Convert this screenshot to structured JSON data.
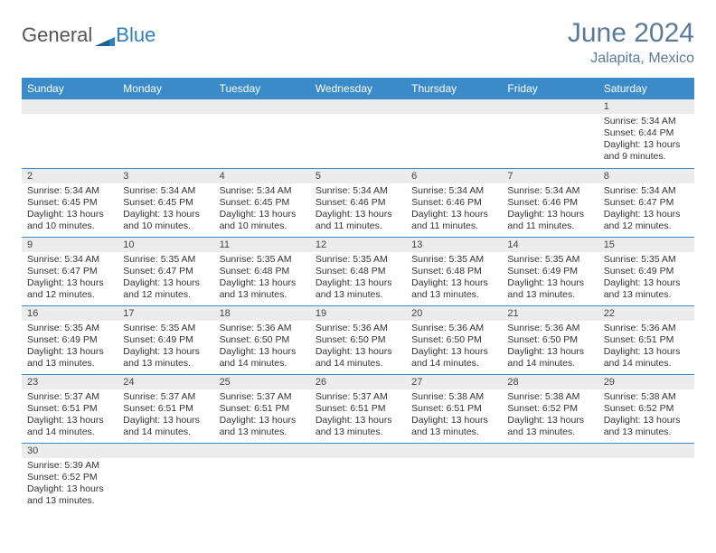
{
  "brand": {
    "part1": "General",
    "part2": "Blue"
  },
  "title": "June 2024",
  "location": "Jalapita, Mexico",
  "colors": {
    "header_bg": "#3b8bc9",
    "header_text": "#ffffff",
    "title_color": "#5a7a99",
    "daynum_bg": "#ececec",
    "border": "#3b8bc9"
  },
  "weekdays": [
    "Sunday",
    "Monday",
    "Tuesday",
    "Wednesday",
    "Thursday",
    "Friday",
    "Saturday"
  ],
  "weeks": [
    [
      {
        "n": "",
        "sr": "",
        "ss": "",
        "dl": ""
      },
      {
        "n": "",
        "sr": "",
        "ss": "",
        "dl": ""
      },
      {
        "n": "",
        "sr": "",
        "ss": "",
        "dl": ""
      },
      {
        "n": "",
        "sr": "",
        "ss": "",
        "dl": ""
      },
      {
        "n": "",
        "sr": "",
        "ss": "",
        "dl": ""
      },
      {
        "n": "",
        "sr": "",
        "ss": "",
        "dl": ""
      },
      {
        "n": "1",
        "sr": "Sunrise: 5:34 AM",
        "ss": "Sunset: 6:44 PM",
        "dl": "Daylight: 13 hours and 9 minutes."
      }
    ],
    [
      {
        "n": "2",
        "sr": "Sunrise: 5:34 AM",
        "ss": "Sunset: 6:45 PM",
        "dl": "Daylight: 13 hours and 10 minutes."
      },
      {
        "n": "3",
        "sr": "Sunrise: 5:34 AM",
        "ss": "Sunset: 6:45 PM",
        "dl": "Daylight: 13 hours and 10 minutes."
      },
      {
        "n": "4",
        "sr": "Sunrise: 5:34 AM",
        "ss": "Sunset: 6:45 PM",
        "dl": "Daylight: 13 hours and 10 minutes."
      },
      {
        "n": "5",
        "sr": "Sunrise: 5:34 AM",
        "ss": "Sunset: 6:46 PM",
        "dl": "Daylight: 13 hours and 11 minutes."
      },
      {
        "n": "6",
        "sr": "Sunrise: 5:34 AM",
        "ss": "Sunset: 6:46 PM",
        "dl": "Daylight: 13 hours and 11 minutes."
      },
      {
        "n": "7",
        "sr": "Sunrise: 5:34 AM",
        "ss": "Sunset: 6:46 PM",
        "dl": "Daylight: 13 hours and 11 minutes."
      },
      {
        "n": "8",
        "sr": "Sunrise: 5:34 AM",
        "ss": "Sunset: 6:47 PM",
        "dl": "Daylight: 13 hours and 12 minutes."
      }
    ],
    [
      {
        "n": "9",
        "sr": "Sunrise: 5:34 AM",
        "ss": "Sunset: 6:47 PM",
        "dl": "Daylight: 13 hours and 12 minutes."
      },
      {
        "n": "10",
        "sr": "Sunrise: 5:35 AM",
        "ss": "Sunset: 6:47 PM",
        "dl": "Daylight: 13 hours and 12 minutes."
      },
      {
        "n": "11",
        "sr": "Sunrise: 5:35 AM",
        "ss": "Sunset: 6:48 PM",
        "dl": "Daylight: 13 hours and 13 minutes."
      },
      {
        "n": "12",
        "sr": "Sunrise: 5:35 AM",
        "ss": "Sunset: 6:48 PM",
        "dl": "Daylight: 13 hours and 13 minutes."
      },
      {
        "n": "13",
        "sr": "Sunrise: 5:35 AM",
        "ss": "Sunset: 6:48 PM",
        "dl": "Daylight: 13 hours and 13 minutes."
      },
      {
        "n": "14",
        "sr": "Sunrise: 5:35 AM",
        "ss": "Sunset: 6:49 PM",
        "dl": "Daylight: 13 hours and 13 minutes."
      },
      {
        "n": "15",
        "sr": "Sunrise: 5:35 AM",
        "ss": "Sunset: 6:49 PM",
        "dl": "Daylight: 13 hours and 13 minutes."
      }
    ],
    [
      {
        "n": "16",
        "sr": "Sunrise: 5:35 AM",
        "ss": "Sunset: 6:49 PM",
        "dl": "Daylight: 13 hours and 13 minutes."
      },
      {
        "n": "17",
        "sr": "Sunrise: 5:35 AM",
        "ss": "Sunset: 6:49 PM",
        "dl": "Daylight: 13 hours and 13 minutes."
      },
      {
        "n": "18",
        "sr": "Sunrise: 5:36 AM",
        "ss": "Sunset: 6:50 PM",
        "dl": "Daylight: 13 hours and 14 minutes."
      },
      {
        "n": "19",
        "sr": "Sunrise: 5:36 AM",
        "ss": "Sunset: 6:50 PM",
        "dl": "Daylight: 13 hours and 14 minutes."
      },
      {
        "n": "20",
        "sr": "Sunrise: 5:36 AM",
        "ss": "Sunset: 6:50 PM",
        "dl": "Daylight: 13 hours and 14 minutes."
      },
      {
        "n": "21",
        "sr": "Sunrise: 5:36 AM",
        "ss": "Sunset: 6:50 PM",
        "dl": "Daylight: 13 hours and 14 minutes."
      },
      {
        "n": "22",
        "sr": "Sunrise: 5:36 AM",
        "ss": "Sunset: 6:51 PM",
        "dl": "Daylight: 13 hours and 14 minutes."
      }
    ],
    [
      {
        "n": "23",
        "sr": "Sunrise: 5:37 AM",
        "ss": "Sunset: 6:51 PM",
        "dl": "Daylight: 13 hours and 14 minutes."
      },
      {
        "n": "24",
        "sr": "Sunrise: 5:37 AM",
        "ss": "Sunset: 6:51 PM",
        "dl": "Daylight: 13 hours and 14 minutes."
      },
      {
        "n": "25",
        "sr": "Sunrise: 5:37 AM",
        "ss": "Sunset: 6:51 PM",
        "dl": "Daylight: 13 hours and 13 minutes."
      },
      {
        "n": "26",
        "sr": "Sunrise: 5:37 AM",
        "ss": "Sunset: 6:51 PM",
        "dl": "Daylight: 13 hours and 13 minutes."
      },
      {
        "n": "27",
        "sr": "Sunrise: 5:38 AM",
        "ss": "Sunset: 6:51 PM",
        "dl": "Daylight: 13 hours and 13 minutes."
      },
      {
        "n": "28",
        "sr": "Sunrise: 5:38 AM",
        "ss": "Sunset: 6:52 PM",
        "dl": "Daylight: 13 hours and 13 minutes."
      },
      {
        "n": "29",
        "sr": "Sunrise: 5:38 AM",
        "ss": "Sunset: 6:52 PM",
        "dl": "Daylight: 13 hours and 13 minutes."
      }
    ],
    [
      {
        "n": "30",
        "sr": "Sunrise: 5:39 AM",
        "ss": "Sunset: 6:52 PM",
        "dl": "Daylight: 13 hours and 13 minutes."
      },
      {
        "n": "",
        "sr": "",
        "ss": "",
        "dl": ""
      },
      {
        "n": "",
        "sr": "",
        "ss": "",
        "dl": ""
      },
      {
        "n": "",
        "sr": "",
        "ss": "",
        "dl": ""
      },
      {
        "n": "",
        "sr": "",
        "ss": "",
        "dl": ""
      },
      {
        "n": "",
        "sr": "",
        "ss": "",
        "dl": ""
      },
      {
        "n": "",
        "sr": "",
        "ss": "",
        "dl": ""
      }
    ]
  ]
}
